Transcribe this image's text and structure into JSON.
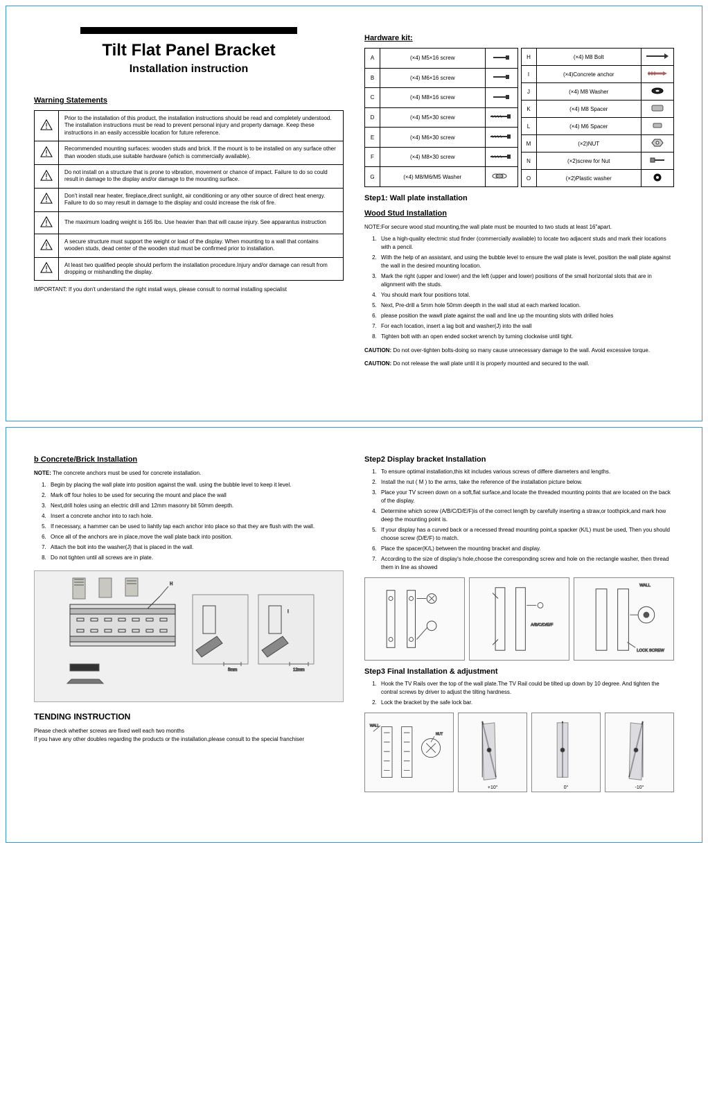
{
  "title": "Tilt Flat Panel Bracket",
  "subtitle": "Installation instruction",
  "warning_heading": "Warning Statements",
  "warnings": [
    "Prior to the installation of this product, the installation instructions should be read and completely understood. The installation instructions must be read to prevent personal injury and property damage. Keep these instructions in an easily accessible location for future reference.",
    "Recommended mounting surfaces: wooden studs and brick. If the mount is to be installed on any surface other than wooden studs,use suitable hardware (which is commercially available).",
    "Do not install on a structure that is prone to vibration, movement or chance of impact. Failure to do so could result in damage to the display and/or damage to the mounting surface.",
    "Don't install near heater, fireplace,direct sunlight, air conditioning or any other source of direct heat energy. Failure to do so may result in damage to the display and could increase the risk of fire.",
    "The maximum loading weight is 165 lbs. Use heavier than that will cause injury. See apparantus instruction",
    "A secure structure must support the weight or load of the display. When mounting to a wall that contains wooden studs, dead center of the wooden stud must be confirmed prior to installation.",
    "At least two qualified people should perform the installation procedure.Injury and/or damage can result from dropping or mishandling the display."
  ],
  "important_note": "IMPORTANT: If you don't understand the right install ways, please consult to normal installing specialist",
  "hardware_heading": "Hardware kit:",
  "hardware_left": [
    {
      "k": "A",
      "d": "(×4) M5×16 screw",
      "icon": "screw-short"
    },
    {
      "k": "B",
      "d": "(×4) M6×16 screw",
      "icon": "screw-short"
    },
    {
      "k": "C",
      "d": "(×4) M8×16 screw",
      "icon": "screw-short"
    },
    {
      "k": "D",
      "d": "(×4) M5×30 screw",
      "icon": "screw-long"
    },
    {
      "k": "E",
      "d": "(×4) M6×30 screw",
      "icon": "screw-long"
    },
    {
      "k": "F",
      "d": "(×4) M8×30 screw",
      "icon": "screw-long"
    },
    {
      "k": "G",
      "d": "(×4) M8/M6/M5 Washer",
      "icon": "washer-set"
    }
  ],
  "hardware_right": [
    {
      "k": "H",
      "d": "(×4) M8 Bolt",
      "icon": "bolt"
    },
    {
      "k": "I",
      "d": "(×4)Concrete anchor",
      "icon": "anchor"
    },
    {
      "k": "J",
      "d": "(×4) M8 Washer",
      "icon": "washer"
    },
    {
      "k": "K",
      "d": "(×4) M8 Spacer",
      "icon": "spacer"
    },
    {
      "k": "L",
      "d": "(×4) M6 Spacer",
      "icon": "spacer-sm"
    },
    {
      "k": "M",
      "d": "(×2)NUT",
      "icon": "nut"
    },
    {
      "k": "N",
      "d": "(×2)screw for Nut",
      "icon": "screw-nut"
    },
    {
      "k": "O",
      "d": "(×2)Plastic washer",
      "icon": "pwasher"
    }
  ],
  "step1_heading": "Step1: Wall plate installation",
  "wood_heading": "Wood Stud Installation",
  "wood_note": "NOTE:For secure wood stud mounting,the wall plate must be mounted to two studs at least 16\"apart.",
  "wood_steps": [
    "Use a high-quality electrnic stud finder (commercially available) to locate two adjacent studs and mark their locations with a pencil.",
    "With the help of an assistant, and using the bubble level to ensure the wall plate is level, position the wall plate against the wall in the desired mounting location.",
    "Mark the right (upper and lower) and the left (upper and lower) positions of the small horizontal slots that are in alignment with the studs.",
    "You should mark four positions total.",
    "Next, Pre-drill a 5mm hole 50mm deepth in the wall stud at each marked location.",
    "please position the wawll plate against the wall and line up the mounting slots with drilled holes",
    "For each location, insert a lag bolt and washer(J) into the wall",
    "Tighten bolt with an open ended socket wrench by turning clockwise until tight."
  ],
  "caution1": "Do not over-tighten bolts-doing so many cause unnecessary damage to the wall. Avoid excessive torque.",
  "caution2": "Do not release the wall plate until it is properly mounted and secured to the wall.",
  "concrete_heading": "b Concrete/Brick Installation",
  "concrete_note": "The concrete anchors must be used for concrete installation.",
  "concrete_steps": [
    "Begin by placing the wall plate into position against the wall. using the bubble level to keep it level.",
    "Mark off four holes to be used for securing the mount and place the wall",
    "Next,drill holes using an electric drill and 12mm masonry bit 50mm deepth.",
    "Insert a concrete anchor into to rach hole.",
    "If necessary, a hammer can be used to liahtly tap each anchor into place so that they are flush with the wall.",
    "Once all of the anchors are in place,move the wall plate back into position.",
    "Attach the bolt into the washer(J) that is placed in the wall.",
    "Do not tighten until all screws are in plate."
  ],
  "tending_heading": "TENDING INSTRUCTION",
  "tending_text1": "Please check whether screws are fixed well each two months",
  "tending_text2": "If you have any other doubles regarding the products or the installation,please consult to the special franchiser",
  "step2_heading": "Step2 Display bracket Installation",
  "step2_steps": [
    "To ensure optimal installation,this kit includes various screws of differe diameters and lengths.",
    "Install the nut ( M ) to the arms, take the reference of the installation picture below.",
    "Place your TV screen down on a soft,flat surface,and locate the threaded mounting points that are located on the back of the display.",
    "Determine which screw (A/B/C/D/E/F)is of the correct length by carefully inserting a straw,or toothpick,and mark how deep the mounting point is.",
    "If your display has a curved back or a recessed thread mounting point,a spacker (K/L) must be used, Then you should choose screw (D/E/F) to match.",
    "Place the spacer(K/L) between the mounting bracket and display.",
    "According to the size of display's hole,choose the corresponding screw and hole on the rectangle washer, then thread them in line as showed"
  ],
  "step3_heading": "Step3 Final Installation & adjustment",
  "step3_steps": [
    "Hook the TV Rails over the top of the wall plate.The TV Rail could be tilted up down by 10 degree. And tighten the contral screws by driver to adjust the tilting hardness.",
    "Lock the bracket by the safe lock bar."
  ],
  "angles": [
    "+10°",
    "0°",
    "-10°"
  ],
  "diagram_labels": {
    "wall": "WALL",
    "nut": "NUT",
    "lock": "LOCK SCREW",
    "abcdef": "A/B/C/D/E/F",
    "5mm": "5mm",
    "12mm": "12mm",
    "H": "H",
    "I": "I"
  }
}
